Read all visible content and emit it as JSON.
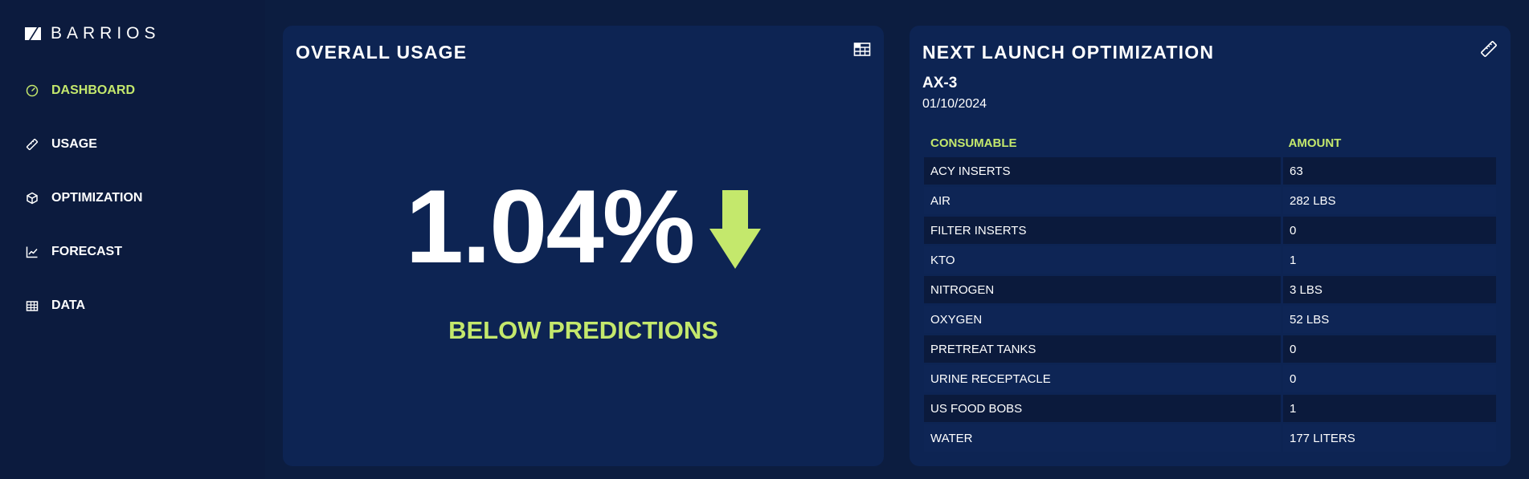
{
  "colors": {
    "accent": "#c4e86c",
    "background": "#0c1d40",
    "card": "#0d2453"
  },
  "brand": {
    "name": "BARRIOS"
  },
  "nav": {
    "dashboard": {
      "label": "DASHBOARD",
      "icon": "speedometer-icon"
    },
    "usage": {
      "label": "USAGE",
      "icon": "ruler-icon"
    },
    "optimization": {
      "label": "OPTIMIZATION",
      "icon": "cube-icon"
    },
    "forecast": {
      "label": "FORECAST",
      "icon": "line-chart-icon"
    },
    "data": {
      "label": "DATA",
      "icon": "table-icon"
    }
  },
  "usage_card": {
    "title": "OVERALL USAGE",
    "value": "1.04%",
    "trend": "down",
    "status": "BELOW PREDICTIONS",
    "icon": "table-icon"
  },
  "launch_card": {
    "title": "NEXT LAUNCH OPTIMIZATION",
    "icon": "ruler-icon",
    "mission": "AX-3",
    "date": "01/10/2024",
    "columns": [
      "CONSUMABLE",
      "AMOUNT"
    ],
    "rows": [
      [
        "ACY INSERTS",
        "63"
      ],
      [
        "AIR",
        "282 LBS"
      ],
      [
        "FILTER INSERTS",
        "0"
      ],
      [
        "KTO",
        "1"
      ],
      [
        "NITROGEN",
        "3 LBS"
      ],
      [
        "OXYGEN",
        "52 LBS"
      ],
      [
        "PRETREAT TANKS",
        "0"
      ],
      [
        "URINE RECEPTACLE",
        "0"
      ],
      [
        "US FOOD BOBS",
        "1"
      ],
      [
        "WATER",
        "177 LITERS"
      ]
    ]
  }
}
